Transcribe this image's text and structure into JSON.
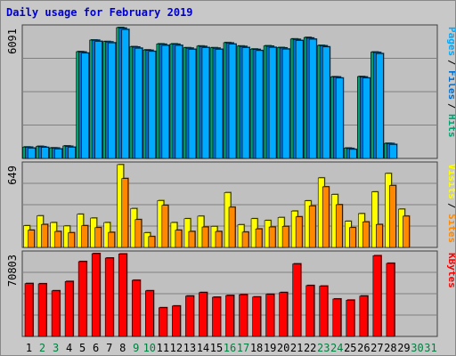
{
  "title": "Daily usage for February 2019",
  "chart_data": {
    "type": "bar",
    "categories": [
      "1",
      "2",
      "3",
      "4",
      "5",
      "6",
      "7",
      "8",
      "9",
      "10",
      "11",
      "12",
      "13",
      "14",
      "15",
      "16",
      "17",
      "18",
      "19",
      "20",
      "21",
      "22",
      "23",
      "24",
      "25",
      "26",
      "27",
      "28",
      "29",
      "30",
      "31"
    ],
    "weekend_days": [
      "2",
      "3",
      "9",
      "10",
      "16",
      "17",
      "23",
      "24",
      "30",
      "31"
    ],
    "colors": {
      "pages": "#00aaff",
      "files": "#0070d0",
      "hits": "#00a070",
      "visits": "#ffff00",
      "sites": "#ff8800",
      "kbytes": "#ff0000",
      "weekday_tick": "#000000",
      "weekend_tick": "#008040",
      "title": "#0000cc"
    },
    "panels": [
      {
        "id": "pages-files-hits",
        "max_label": "6091",
        "ylim": [
          0,
          6091
        ],
        "right_labels": [
          "Pages",
          "Files",
          "Hits"
        ],
        "series": [
          {
            "name": "Hits",
            "values": [
              530,
              560,
              490,
              580,
              4970,
              5510,
              5440,
              6091,
              5200,
              5050,
              5330,
              5330,
              5150,
              5230,
              5150,
              5390,
              5230,
              5090,
              5240,
              5160,
              5560,
              5630,
              5260,
              3800,
              480,
              3810,
              4950,
              700,
              0,
              0,
              0
            ]
          },
          {
            "name": "Files",
            "values": [
              520,
              540,
              480,
              560,
              4950,
              5500,
              5420,
              6060,
              5180,
              5030,
              5310,
              5310,
              5130,
              5210,
              5130,
              5370,
              5210,
              5070,
              5220,
              5140,
              5540,
              5600,
              5240,
              3790,
              460,
              3790,
              4930,
              690,
              0,
              0,
              0
            ]
          },
          {
            "name": "Pages",
            "values": [
              480,
              510,
              440,
              520,
              4900,
              5450,
              5380,
              6000,
              5130,
              4980,
              5260,
              5260,
              5080,
              5160,
              5080,
              5320,
              5160,
              5020,
              5170,
              5090,
              5490,
              5550,
              5190,
              3740,
              420,
              3740,
              4880,
              650,
              0,
              0,
              0
            ]
          }
        ]
      },
      {
        "id": "visits-sites",
        "max_label": "649",
        "ylim": [
          0,
          649
        ],
        "right_labels": [
          "Visits",
          "Sites"
        ],
        "series": [
          {
            "name": "Visits",
            "values": [
              170,
              248,
              195,
              168,
              260,
              230,
              195,
              649,
              305,
              115,
              367,
              195,
              225,
              245,
              165,
              430,
              178,
              225,
              211,
              235,
              285,
              365,
              545,
              415,
              205,
              265,
              435,
              580,
              300,
              0,
              0
            ]
          },
          {
            "name": "Sites",
            "values": [
              135,
              180,
              125,
              115,
              170,
              155,
              118,
              540,
              218,
              85,
              330,
              135,
              125,
              160,
              125,
              315,
              120,
              145,
              160,
              165,
              240,
              325,
              475,
              335,
              155,
              200,
              180,
              485,
              245,
              0,
              0
            ]
          }
        ]
      },
      {
        "id": "kbytes",
        "max_label": "70803",
        "ylim": [
          0,
          70803
        ],
        "right_labels": [
          "KBytes"
        ],
        "series": [
          {
            "name": "KBytes",
            "values": [
              45200,
              45000,
              39000,
              47000,
              64000,
              70803,
              67000,
              70500,
              48000,
              39000,
              24500,
              26000,
              34500,
              37500,
              33500,
              35000,
              35700,
              33700,
              36000,
              37500,
              62000,
              43500,
              43000,
              32000,
              31000,
              34500,
              69000,
              62500,
              0,
              0,
              0
            ]
          }
        ]
      }
    ]
  }
}
